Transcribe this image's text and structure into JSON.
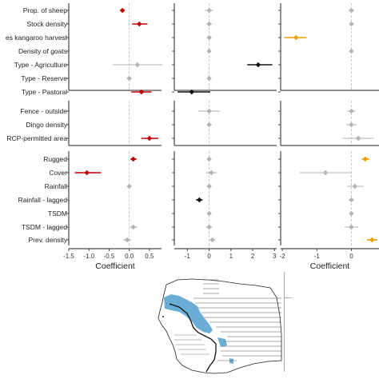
{
  "chart_data": {
    "type": "forest",
    "xlabel": "Coefficient",
    "covariates": [
      "Prop. of sheep",
      "Stock density",
      "es kangaroo harvest",
      "Density of goats",
      "Type - Agriculture",
      "Type - Reserve",
      "Type - Pastoral",
      "Fence - outside",
      "Dingo density",
      "RCP-permitted area",
      "Rugged",
      "Cover",
      "Rainfall",
      "Rainfall - lagged",
      "TSDM",
      "TSDM - lagged",
      "Prev. density"
    ],
    "groups": [
      [
        "Prop. of sheep",
        "Stock density",
        "es kangaroo harvest",
        "Density of goats",
        "Type - Agriculture",
        "Type - Reserve",
        "Type - Pastoral"
      ],
      [
        "Fence - outside",
        "Dingo density",
        "RCP-permitted area"
      ],
      [
        "Rugged",
        "Cover",
        "Rainfall",
        "Rainfall - lagged",
        "TSDM",
        "TSDM - lagged",
        "Prev. density"
      ]
    ],
    "panels": [
      {
        "xlim": [
          -1.5,
          0.8
        ],
        "ticks": [
          -1.5,
          -1.0,
          -0.5,
          0.0,
          0.5
        ],
        "tick_labels": [
          "-1.5",
          "-1.0",
          "-0.5",
          "0.0",
          "0.5"
        ],
        "show_xlabel": true,
        "estimates": [
          {
            "covariate": "Prop. of sheep",
            "est": -0.17,
            "lo": -0.23,
            "hi": -0.11,
            "color": "#c00000"
          },
          {
            "covariate": "Stock density",
            "est": 0.25,
            "lo": 0.07,
            "hi": 0.45,
            "color": "#c00000"
          },
          {
            "covariate": "RCP-permitted area",
            "est": 0.5,
            "lo": 0.3,
            "hi": 0.72,
            "color": "#c00000"
          },
          {
            "covariate": "Type - Agriculture",
            "est": 0.2,
            "lo": -0.4,
            "hi": 0.82,
            "color": "#b3b3b3"
          },
          {
            "covariate": "Type - Reserve",
            "est": 0.0,
            "lo": -0.03,
            "hi": 0.03,
            "color": "#b3b3b3"
          },
          {
            "covariate": "Type - Pastoral",
            "est": 0.3,
            "lo": 0.05,
            "hi": 0.55,
            "color": "#c00000"
          },
          {
            "covariate": "Rugged",
            "est": 0.1,
            "lo": 0.03,
            "hi": 0.18,
            "color": "#c00000"
          },
          {
            "covariate": "Cover",
            "est": -1.05,
            "lo": -1.35,
            "hi": -0.7,
            "color": "#c00000"
          },
          {
            "covariate": "Rainfall",
            "est": 0.0,
            "lo": -0.03,
            "hi": 0.03,
            "color": "#b3b3b3"
          },
          {
            "covariate": "TSDM - lagged",
            "est": 0.1,
            "lo": 0.0,
            "hi": 0.2,
            "color": "#b3b3b3"
          },
          {
            "covariate": "Prev. density",
            "est": -0.05,
            "lo": -0.15,
            "hi": 0.05,
            "color": "#b3b3b3"
          }
        ]
      },
      {
        "xlim": [
          -1.6,
          3.1
        ],
        "ticks": [
          -1,
          0,
          1,
          2,
          3
        ],
        "tick_labels": [
          "-1",
          "0",
          "1",
          "2",
          "3"
        ],
        "show_xlabel": false,
        "estimates": [
          {
            "covariate": "Prop. of sheep",
            "est": 0.0,
            "lo": -0.2,
            "hi": 0.2,
            "color": "#b3b3b3"
          },
          {
            "covariate": "Stock density",
            "est": 0.0,
            "lo": -0.12,
            "hi": 0.12,
            "color": "#b3b3b3"
          },
          {
            "covariate": "es kangaroo harvest",
            "est": 0.0,
            "lo": -0.05,
            "hi": 0.05,
            "color": "#b3b3b3"
          },
          {
            "covariate": "Density of goats",
            "est": 0.0,
            "lo": -0.05,
            "hi": 0.05,
            "color": "#b3b3b3"
          },
          {
            "covariate": "Type - Agriculture",
            "est": 2.25,
            "lo": 1.75,
            "hi": 2.9,
            "color": "#111111"
          },
          {
            "covariate": "Type - Reserve",
            "est": 0.0,
            "lo": -0.05,
            "hi": 0.05,
            "color": "#b3b3b3"
          },
          {
            "covariate": "Type - Pastoral",
            "est": -0.8,
            "lo": -1.45,
            "hi": 0.05,
            "color": "#111111"
          },
          {
            "covariate": "Fence - outside",
            "est": 0.0,
            "lo": -0.5,
            "hi": 0.5,
            "color": "#b3b3b3"
          },
          {
            "covariate": "Dingo density",
            "est": 0.0,
            "lo": -0.12,
            "hi": 0.12,
            "color": "#b3b3b3"
          },
          {
            "covariate": "Rugged",
            "est": 0.0,
            "lo": -0.08,
            "hi": 0.08,
            "color": "#b3b3b3"
          },
          {
            "covariate": "Cover",
            "est": 0.1,
            "lo": -0.15,
            "hi": 0.35,
            "color": "#b3b3b3"
          },
          {
            "covariate": "Rainfall",
            "est": 0.0,
            "lo": -0.08,
            "hi": 0.08,
            "color": "#b3b3b3"
          },
          {
            "covariate": "Rainfall - lagged",
            "est": -0.45,
            "lo": -0.6,
            "hi": -0.3,
            "color": "#111111"
          },
          {
            "covariate": "TSDM",
            "est": 0.0,
            "lo": -0.08,
            "hi": 0.08,
            "color": "#b3b3b3"
          },
          {
            "covariate": "TSDM - lagged",
            "est": 0.0,
            "lo": -0.15,
            "hi": 0.15,
            "color": "#b3b3b3"
          },
          {
            "covariate": "Prev. density",
            "est": 0.15,
            "lo": 0.0,
            "hi": 0.3,
            "color": "#b3b3b3"
          }
        ]
      },
      {
        "xlim": [
          -2.05,
          0.8
        ],
        "ticks": [
          -2,
          -1,
          0
        ],
        "tick_labels": [
          "-2",
          "-1",
          "0"
        ],
        "show_xlabel": true,
        "estimates": [
          {
            "covariate": "Prop. of sheep",
            "est": 0.0,
            "lo": -0.08,
            "hi": 0.08,
            "color": "#b3b3b3"
          },
          {
            "covariate": "Stock density",
            "est": 0.0,
            "lo": -0.06,
            "hi": 0.06,
            "color": "#b3b3b3"
          },
          {
            "covariate": "es kangaroo harvest",
            "est": -1.6,
            "lo": -1.95,
            "hi": -1.3,
            "color": "#e6a000"
          },
          {
            "covariate": "Density of goats",
            "est": 0.0,
            "lo": -0.04,
            "hi": 0.04,
            "color": "#b3b3b3"
          },
          {
            "covariate": "Fence - outside",
            "est": 0.0,
            "lo": -0.12,
            "hi": 0.12,
            "color": "#b3b3b3"
          },
          {
            "covariate": "Dingo density",
            "est": 0.0,
            "lo": -0.15,
            "hi": 0.15,
            "color": "#b3b3b3"
          },
          {
            "covariate": "RCP-permitted area",
            "est": 0.2,
            "lo": -0.25,
            "hi": 0.65,
            "color": "#b3b3b3"
          },
          {
            "covariate": "Rugged",
            "est": 0.4,
            "lo": 0.3,
            "hi": 0.52,
            "color": "#e6a000"
          },
          {
            "covariate": "Cover",
            "est": -0.75,
            "lo": -1.5,
            "hi": 0.0,
            "color": "#b3b3b3"
          },
          {
            "covariate": "Rainfall",
            "est": 0.1,
            "lo": -0.12,
            "hi": 0.35,
            "color": "#b3b3b3"
          },
          {
            "covariate": "Rainfall - lagged",
            "est": 0.0,
            "lo": -0.08,
            "hi": 0.08,
            "color": "#b3b3b3"
          },
          {
            "covariate": "TSDM",
            "est": 0.0,
            "lo": -0.05,
            "hi": 0.05,
            "color": "#b3b3b3"
          },
          {
            "covariate": "TSDM - lagged",
            "est": 0.0,
            "lo": -0.2,
            "hi": 0.2,
            "color": "#b3b3b3"
          },
          {
            "covariate": "Prev. density",
            "est": 0.6,
            "lo": 0.45,
            "hi": 0.75,
            "color": "#e6a000"
          }
        ]
      }
    ]
  },
  "colors": {
    "map_range": "#6aaed6",
    "grid_zero": "#bdbdbd"
  }
}
